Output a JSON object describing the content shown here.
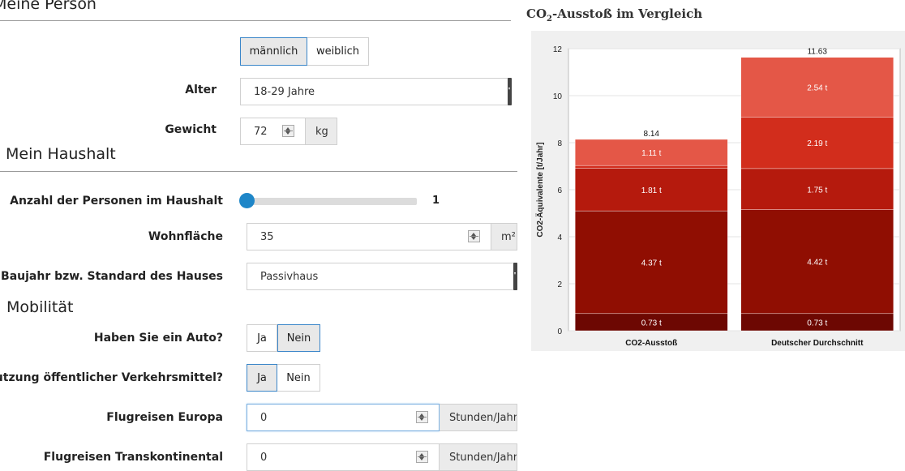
{
  "person": {
    "title": "Meine Person",
    "gender": {
      "options": [
        "männlich",
        "weiblich"
      ],
      "selected": "männlich"
    },
    "age": {
      "label": "Alter",
      "value": "18-29 Jahre"
    },
    "weight": {
      "label": "Gewicht",
      "value": "72",
      "unit": "kg"
    }
  },
  "household": {
    "title": "Mein Haushalt",
    "persons": {
      "label": "Anzahl der Personen im Haushalt",
      "value": "1",
      "fraction": 0
    },
    "area": {
      "label": "Wohnfläche",
      "value": "35",
      "unit": "m²"
    },
    "standard": {
      "label": "Baujahr bzw. Standard des Hauses",
      "value": "Passivhaus"
    }
  },
  "mobility": {
    "title": "Mobilität",
    "car": {
      "label": "Haben Sie ein Auto?",
      "options": [
        "Ja",
        "Nein"
      ],
      "selected": "Nein"
    },
    "transit": {
      "label": "Nutzung öffentlicher Verkehrsmittel?",
      "options": [
        "Ja",
        "Nein"
      ],
      "selected": "Ja"
    },
    "flights_europe": {
      "label": "Flugreisen Europa",
      "value": "0",
      "unit": "Stunden/Jahr"
    },
    "flights_intercont": {
      "label": "Flugreisen Transkontinental",
      "value": "0",
      "unit": "Stunden/Jahr"
    }
  },
  "chart_data": {
    "type": "bar",
    "stacked": true,
    "title_main": "CO",
    "title_sub": "2",
    "title_rest": "-Ausstoß im Vergleich",
    "ylabel": "CO2-Äquivalente [t/Jahr]",
    "ylim": [
      0,
      12
    ],
    "yticks": [
      0,
      2,
      4,
      6,
      8,
      10,
      12
    ],
    "grid": true,
    "categories": [
      "CO2-Ausstoß",
      "Deutscher Durchschnitt"
    ],
    "totals": [
      "8.14",
      "11.63"
    ],
    "series": [
      {
        "values": [
          0.73,
          0.73
        ],
        "labels": [
          "0.73 t",
          "0.73 t"
        ],
        "color": "#6d0802"
      },
      {
        "values": [
          4.37,
          4.42
        ],
        "labels": [
          "4.37 t",
          "4.42 t"
        ],
        "color": "#900e02"
      },
      {
        "values": [
          1.81,
          1.75
        ],
        "labels": [
          "1.81 t",
          "1.75 t"
        ],
        "color": "#b51a0d"
      },
      {
        "values": [
          0.12,
          2.19
        ],
        "labels": [
          "",
          "2.19 t"
        ],
        "color": "#d22d1c"
      },
      {
        "values": [
          1.11,
          2.54
        ],
        "labels": [
          "1.11 t",
          "2.54 t"
        ],
        "color": "#e45747"
      }
    ]
  }
}
